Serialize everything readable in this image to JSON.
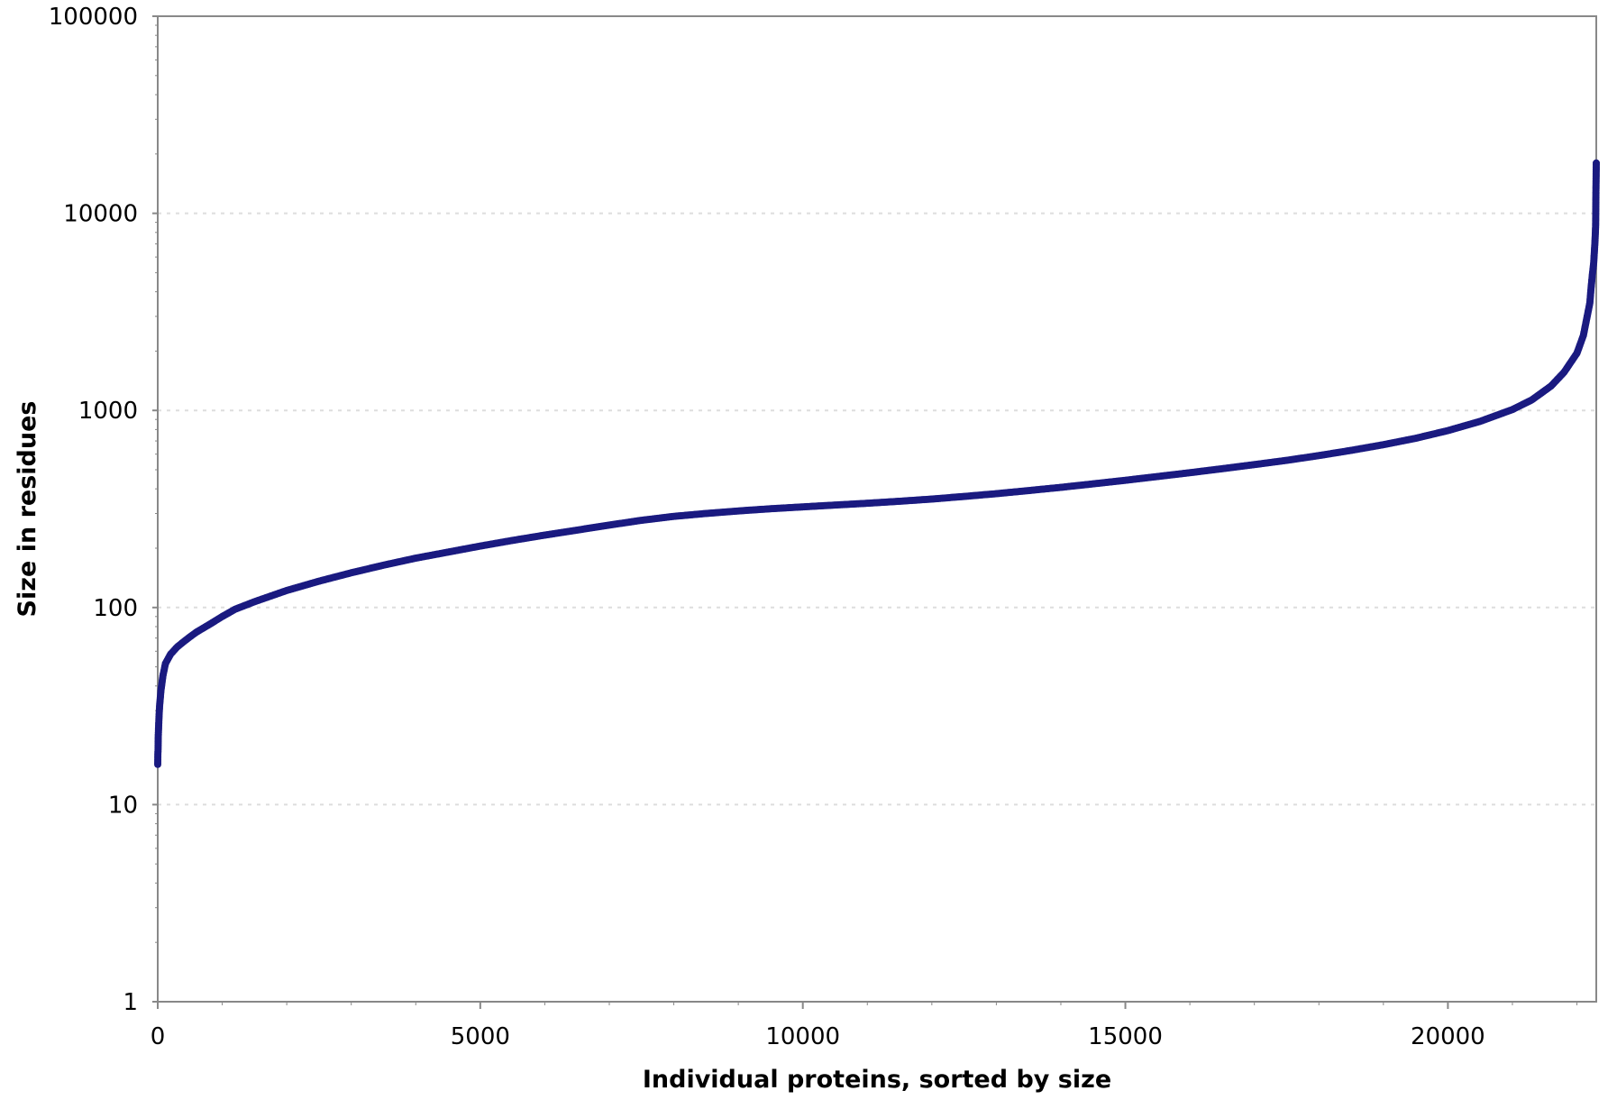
{
  "colors": {
    "series": "#1a1a80",
    "axis": "#888888",
    "grid": "#dddddd",
    "background": "#ffffff"
  },
  "chart_data": {
    "type": "scatter",
    "title": "",
    "xlabel": "Individual proteins, sorted by size",
    "ylabel": "Size in residues",
    "xlim": [
      0,
      22300
    ],
    "ylim": [
      1,
      100000
    ],
    "yscale": "log",
    "xticks": [
      "0",
      "5000",
      "10000",
      "15000",
      "20000"
    ],
    "yticks": [
      "1",
      "10",
      "100",
      "1000",
      "10000",
      "100000"
    ],
    "grid": "horizontal dotted",
    "legend": "none",
    "series": [
      {
        "x": [
          0,
          2,
          5,
          8,
          12,
          20,
          30,
          50,
          80,
          120,
          200,
          300,
          400,
          500,
          600,
          800,
          1000,
          1200,
          1500,
          2000,
          2500,
          3000,
          3500,
          4000,
          4500,
          5000,
          5500,
          6000,
          6500,
          7000,
          7500,
          8000,
          8500,
          9000,
          9500,
          10000,
          10500,
          11000,
          11500,
          12000,
          12500,
          13000,
          13500,
          14000,
          14500,
          15000,
          15500,
          16000,
          16500,
          17000,
          17500,
          18000,
          18500,
          19000,
          19500,
          20000,
          20500,
          21000,
          21300,
          21600,
          21800,
          22000,
          22100,
          22150,
          22200,
          22220,
          22240,
          22260,
          22280,
          22290,
          22295,
          22300
        ],
        "y": [
          16,
          18,
          19,
          22,
          24,
          28,
          32,
          38,
          45,
          52,
          58,
          63,
          67,
          71,
          75,
          82,
          90,
          98,
          107,
          122,
          136,
          150,
          164,
          178,
          191,
          205,
          219,
          233,
          247,
          262,
          277,
          290,
          300,
          309,
          317,
          324,
          331,
          338,
          346,
          355,
          366,
          378,
          392,
          407,
          424,
          442,
          462,
          483,
          506,
          531,
          558,
          590,
          627,
          670,
          722,
          790,
          880,
          1010,
          1130,
          1330,
          1560,
          1950,
          2400,
          2900,
          3500,
          4200,
          4900,
          5600,
          7200,
          8600,
          12800,
          18000
        ]
      }
    ]
  }
}
